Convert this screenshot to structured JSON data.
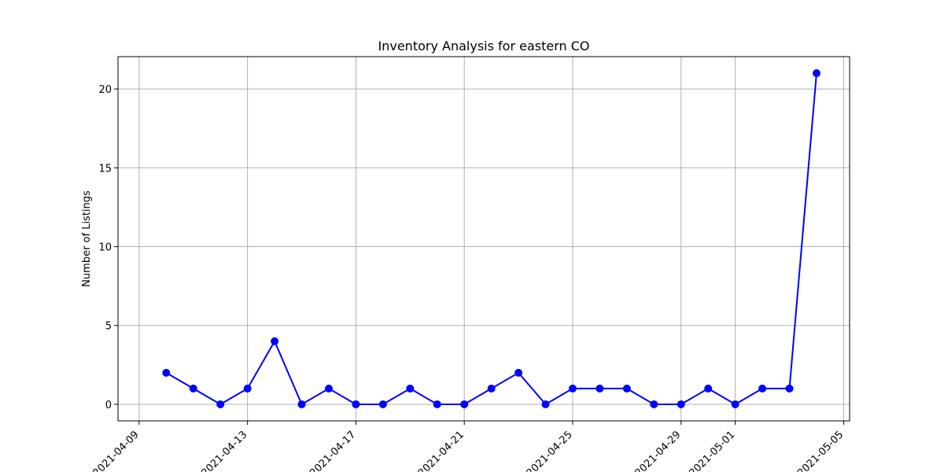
{
  "chart_data": {
    "type": "line",
    "title": "Inventory Analysis for eastern CO",
    "xlabel": "",
    "ylabel": "Number of Listings",
    "x": [
      "2021-04-10",
      "2021-04-11",
      "2021-04-12",
      "2021-04-13",
      "2021-04-14",
      "2021-04-15",
      "2021-04-16",
      "2021-04-17",
      "2021-04-18",
      "2021-04-19",
      "2021-04-20",
      "2021-04-21",
      "2021-04-22",
      "2021-04-23",
      "2021-04-24",
      "2021-04-25",
      "2021-04-26",
      "2021-04-27",
      "2021-04-28",
      "2021-04-29",
      "2021-04-30",
      "2021-05-01",
      "2021-05-02",
      "2021-05-03",
      "2021-05-04"
    ],
    "series": [
      {
        "values": [
          2,
          1,
          0,
          1,
          4,
          0,
          1,
          0,
          0,
          1,
          0,
          0,
          1,
          2,
          0,
          1,
          1,
          1,
          0,
          0,
          1,
          0,
          1,
          1,
          21
        ],
        "color": "#0000ff",
        "marker": "circle"
      }
    ],
    "x_ticks": [
      "2021-04-09",
      "2021-04-13",
      "2021-04-17",
      "2021-04-21",
      "2021-04-25",
      "2021-04-29",
      "2021-05-01",
      "2021-05-05"
    ],
    "y_ticks": [
      0,
      5,
      10,
      15,
      20
    ],
    "xlim": [
      "2021-04-08",
      "2021-05-05"
    ],
    "ylim": [
      -1.05,
      22.05
    ],
    "grid": true,
    "colors": {
      "line": "#0000ff",
      "grid": "#b0b0b0",
      "axes": "#000000"
    }
  }
}
